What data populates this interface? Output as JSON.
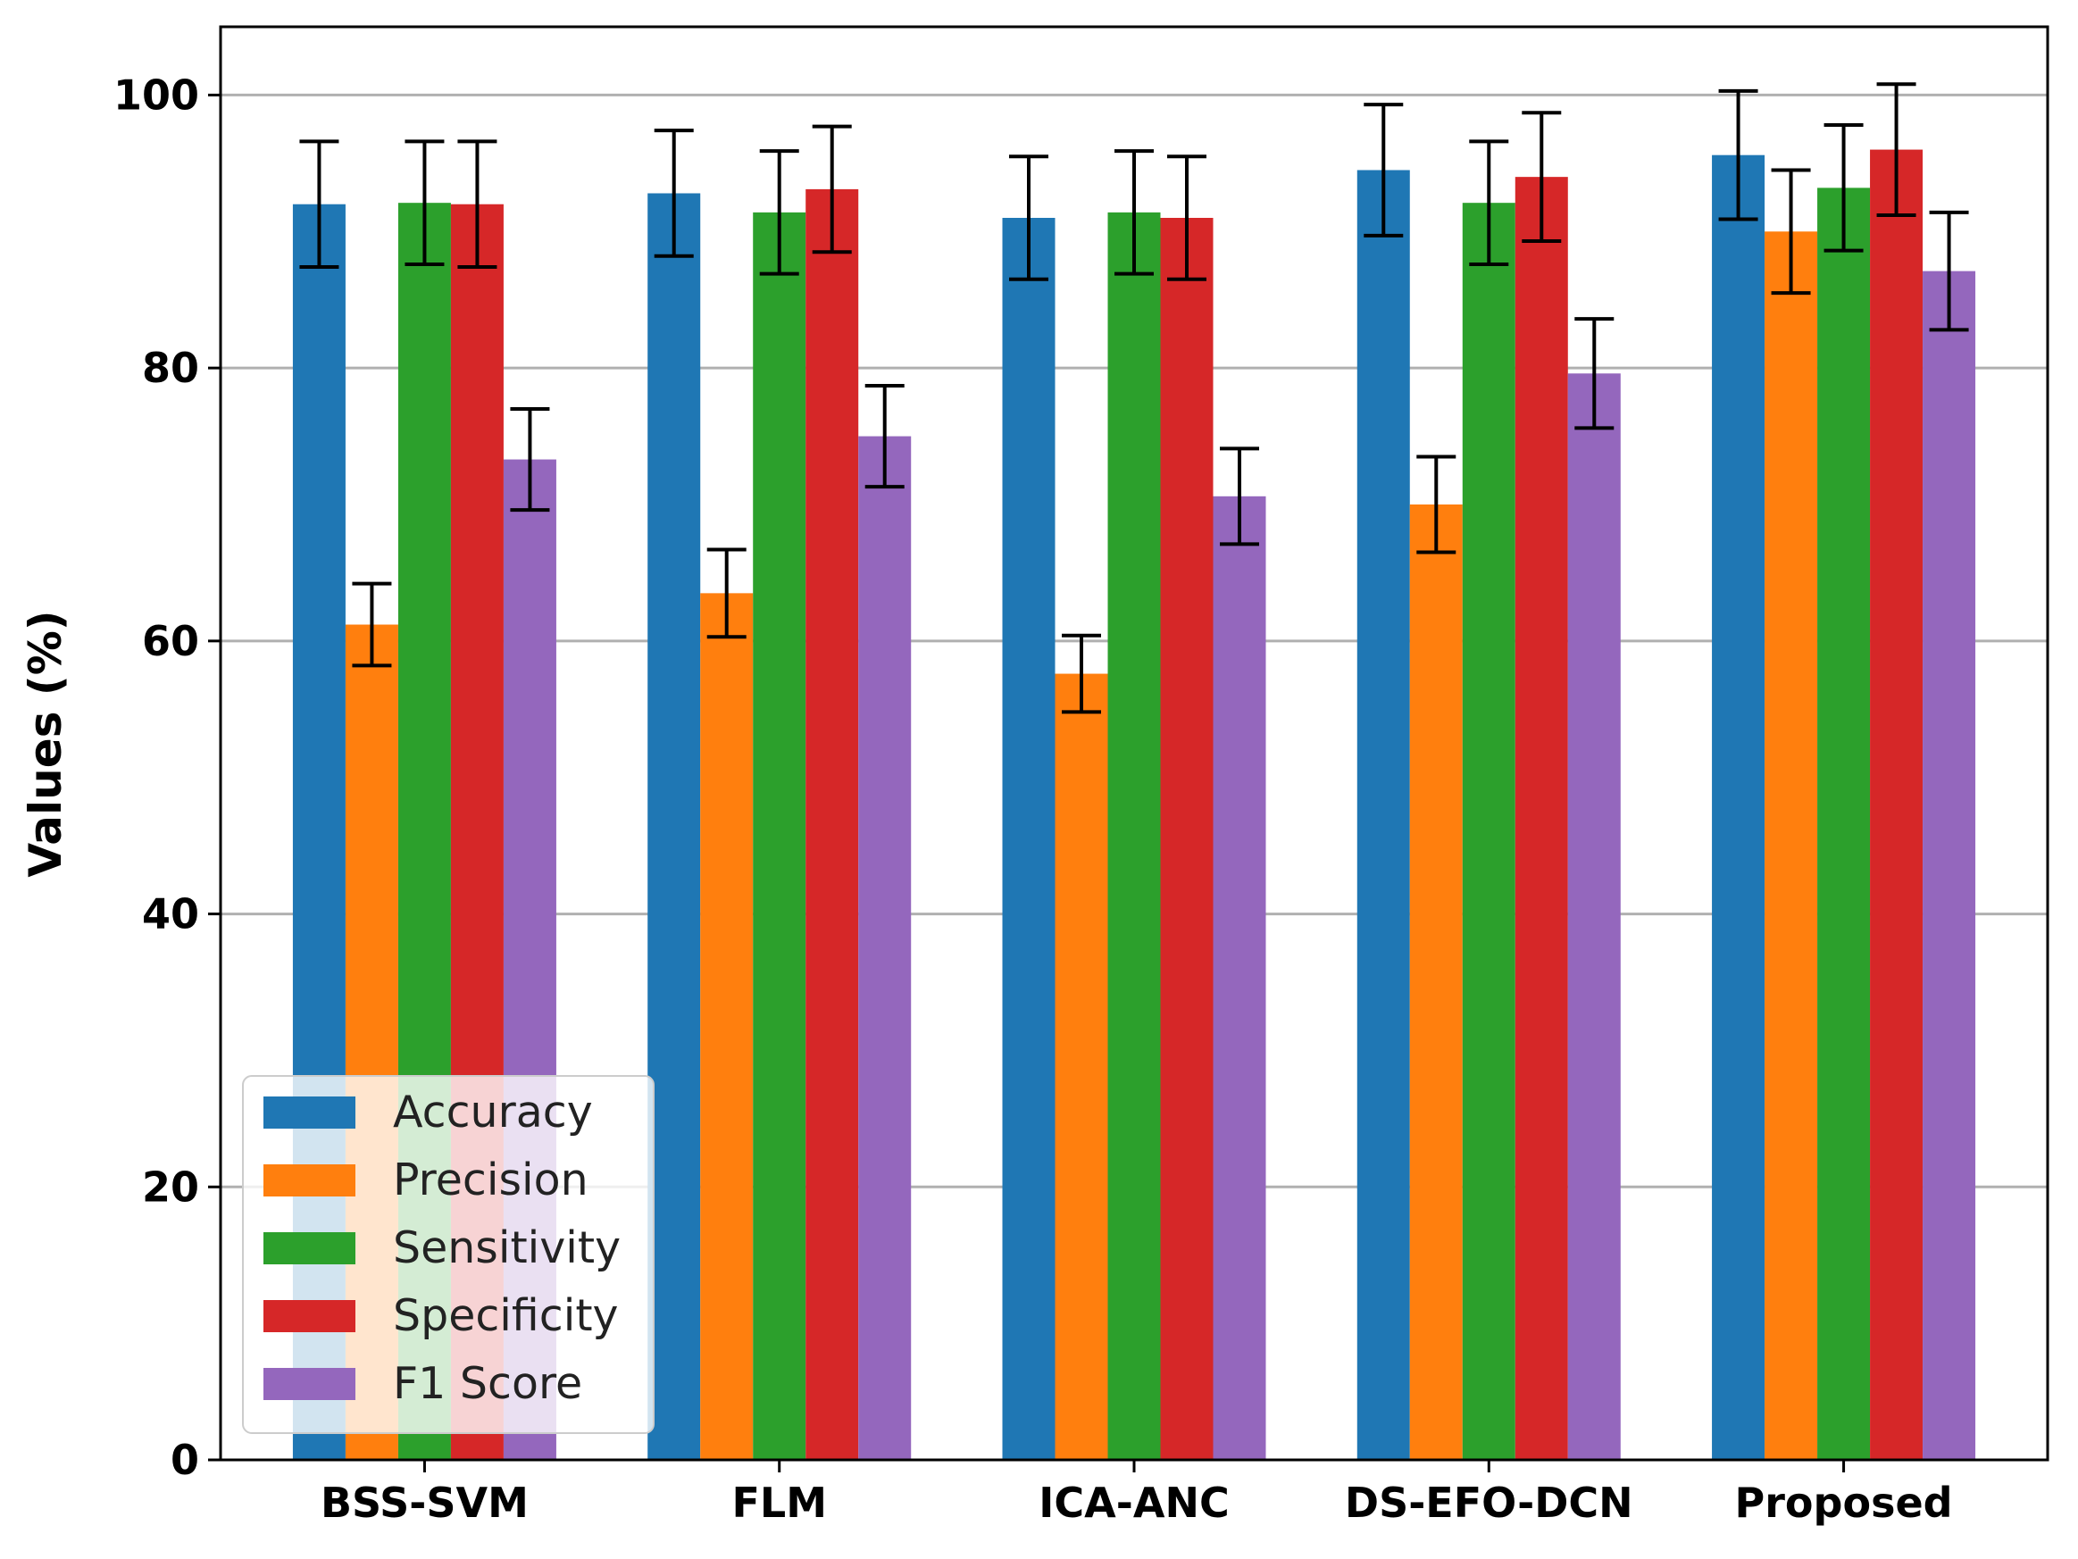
{
  "chart_data": {
    "type": "bar",
    "title": "",
    "xlabel": "",
    "ylabel": "Values (%)",
    "ylim": [
      0,
      105
    ],
    "yticks": [
      0,
      20,
      40,
      60,
      80,
      100
    ],
    "ytick_labels": [
      "0",
      "20",
      "40",
      "60",
      "80",
      "100"
    ],
    "grid": "y",
    "legend_position": "lower-left",
    "categories": [
      "BSS-SVM",
      "FLM",
      "ICA-ANC",
      "DS-EFO-DCN",
      "Proposed"
    ],
    "series": [
      {
        "name": "Accuracy",
        "color": "#1f77b4",
        "values": [
          92.0,
          92.8,
          91.0,
          94.5,
          95.6
        ],
        "errors": [
          4.6,
          4.6,
          4.5,
          4.8,
          4.7
        ]
      },
      {
        "name": "Precision",
        "color": "#ff7f0e",
        "values": [
          61.2,
          63.5,
          57.6,
          70.0,
          90.0
        ],
        "errors": [
          3.0,
          3.2,
          2.8,
          3.5,
          4.5
        ]
      },
      {
        "name": "Sensitivity",
        "color": "#2ca02c",
        "values": [
          92.1,
          91.4,
          91.4,
          92.1,
          93.2
        ],
        "errors": [
          4.5,
          4.5,
          4.5,
          4.5,
          4.6
        ]
      },
      {
        "name": "Specificity",
        "color": "#d62728",
        "values": [
          92.0,
          93.1,
          91.0,
          94.0,
          96.0
        ],
        "errors": [
          4.6,
          4.6,
          4.5,
          4.7,
          4.8
        ]
      },
      {
        "name": "F1 Score",
        "color": "#9467bd",
        "values": [
          73.3,
          75.0,
          70.6,
          79.6,
          87.1
        ],
        "errors": [
          3.7,
          3.7,
          3.5,
          4.0,
          4.3
        ]
      }
    ]
  }
}
